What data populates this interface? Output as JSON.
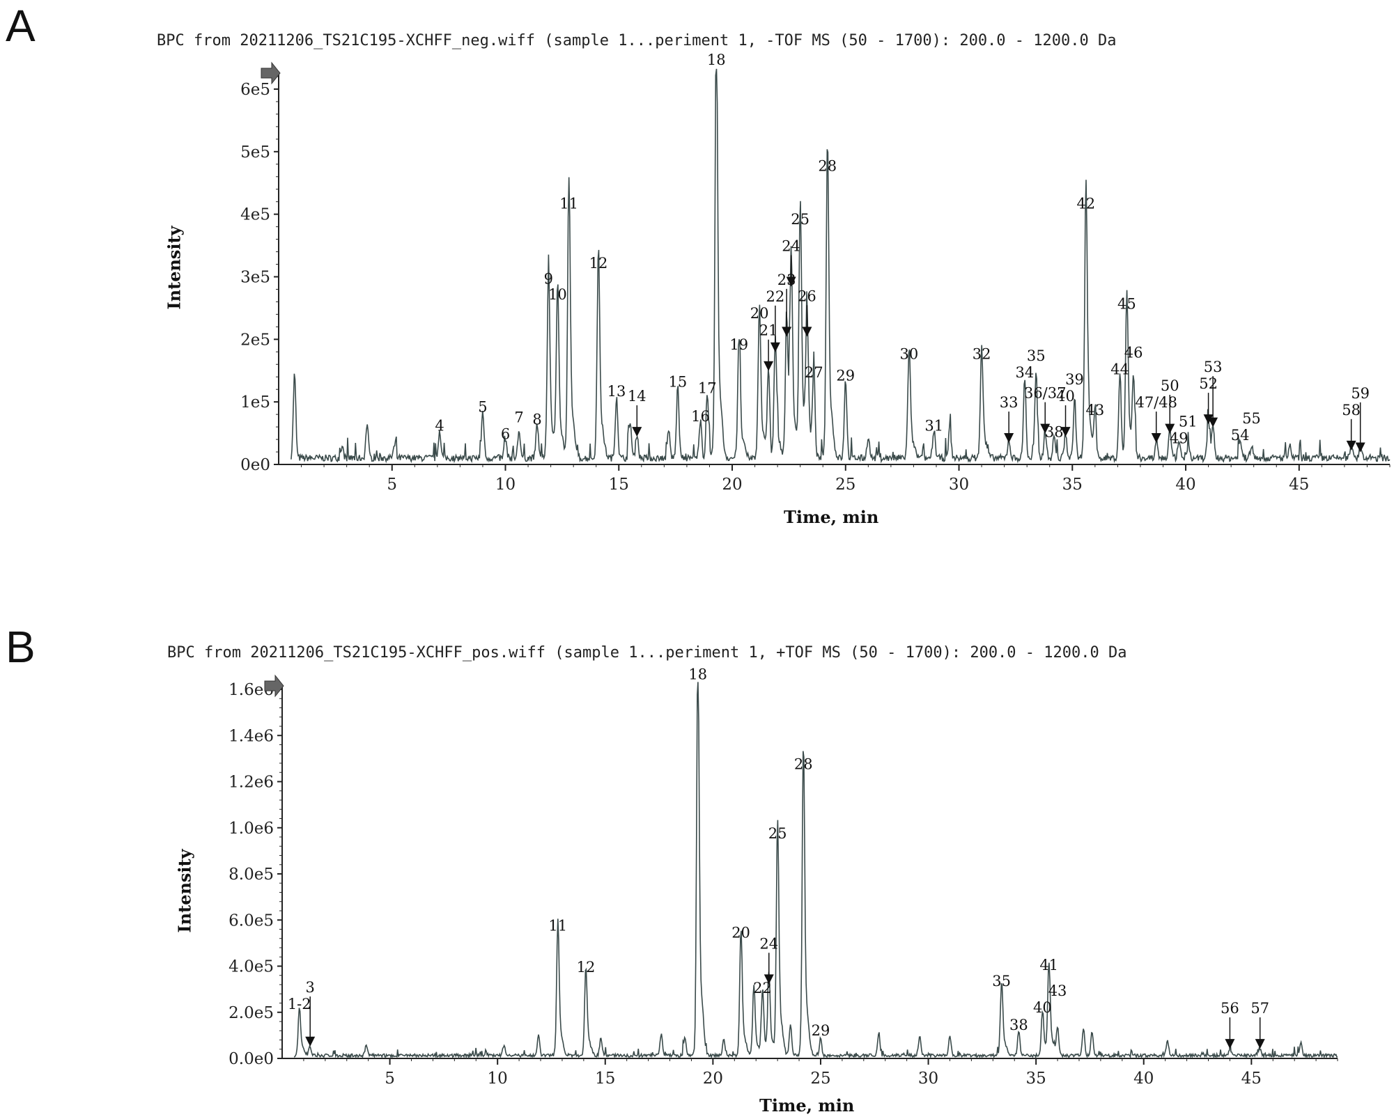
{
  "panels": [
    {
      "letter": "A",
      "title": "BPC from 20211206_TS21C195-XCHFF_neg.wiff (sample 1...periment 1, -TOF MS (50 - 1700): 200.0 - 1200.0 Da",
      "xlabel": "Time, min",
      "ylabel": "Intensity"
    },
    {
      "letter": "B",
      "title": "BPC from 20211206_TS21C195-XCHFF_pos.wiff (sample 1...periment 1, +TOF MS (50 - 1700): 200.0 - 1200.0 Da",
      "xlabel": "Time, min",
      "ylabel": "Intensity"
    }
  ],
  "chart_data": [
    {
      "type": "line",
      "title": "BPC from 20211206_TS21C195-XCHFF_neg.wiff (sample 1...periment 1, -TOF MS (50 - 1700): 200.0 - 1200.0 Da",
      "xlabel": "Time, min",
      "ylabel": "Intensity",
      "xlim": [
        0,
        49
      ],
      "ylim": [
        0,
        620000
      ],
      "xticks": [
        5,
        10,
        15,
        20,
        25,
        30,
        35,
        40,
        45
      ],
      "yticks": [
        {
          "value": 0,
          "label": "0e0"
        },
        {
          "value": 100000,
          "label": "1e5"
        },
        {
          "value": 200000,
          "label": "2e5"
        },
        {
          "value": 300000,
          "label": "3e5"
        },
        {
          "value": 400000,
          "label": "4e5"
        },
        {
          "value": 500000,
          "label": "5e5"
        },
        {
          "value": 600000,
          "label": "6e5"
        }
      ],
      "color": "#3a4a4a",
      "baseline": 12000,
      "peaks": [
        {
          "x": 0.7,
          "y": 135000
        },
        {
          "x": 2.8,
          "y": 18000
        },
        {
          "x": 3.9,
          "y": 55000
        },
        {
          "x": 5.1,
          "y": 18000
        },
        {
          "x": 7.1,
          "y": 45000,
          "label": "4"
        },
        {
          "x": 9.0,
          "y": 75000,
          "label": "5"
        },
        {
          "x": 10.0,
          "y": 32000,
          "label": "6"
        },
        {
          "x": 10.6,
          "y": 45000,
          "label": "7"
        },
        {
          "x": 11.4,
          "y": 55000,
          "label": "8"
        },
        {
          "x": 11.9,
          "y": 280000,
          "label": "9"
        },
        {
          "x": 12.3,
          "y": 255000,
          "label": "10"
        },
        {
          "x": 12.8,
          "y": 400000,
          "label": "11"
        },
        {
          "x": 14.1,
          "y": 305000,
          "label": "12"
        },
        {
          "x": 14.9,
          "y": 100000,
          "label": "13"
        },
        {
          "x": 15.5,
          "y": 60000
        },
        {
          "x": 15.8,
          "y": 40000,
          "label": "14",
          "arrow": true
        },
        {
          "x": 17.2,
          "y": 45000
        },
        {
          "x": 17.6,
          "y": 115000,
          "label": "15"
        },
        {
          "x": 18.6,
          "y": 60000,
          "label": "16"
        },
        {
          "x": 18.9,
          "y": 105000,
          "label": "17"
        },
        {
          "x": 19.3,
          "y": 630000,
          "label": "18"
        },
        {
          "x": 20.3,
          "y": 175000,
          "label": "19"
        },
        {
          "x": 21.2,
          "y": 225000,
          "label": "20"
        },
        {
          "x": 21.6,
          "y": 145000,
          "label": "21",
          "arrow": true
        },
        {
          "x": 21.9,
          "y": 175000,
          "label": "22",
          "arrow": true
        },
        {
          "x": 22.4,
          "y": 200000,
          "label": "23",
          "arrow": true
        },
        {
          "x": 22.6,
          "y": 280000,
          "label": "24",
          "arrow": true
        },
        {
          "x": 23.0,
          "y": 375000,
          "label": "25"
        },
        {
          "x": 23.3,
          "y": 200000,
          "label": "26",
          "arrow": true
        },
        {
          "x": 23.6,
          "y": 130000,
          "label": "27"
        },
        {
          "x": 24.2,
          "y": 460000,
          "label": "28"
        },
        {
          "x": 25.0,
          "y": 125000,
          "label": "29"
        },
        {
          "x": 26.0,
          "y": 35000
        },
        {
          "x": 27.8,
          "y": 160000,
          "label": "30"
        },
        {
          "x": 28.9,
          "y": 45000,
          "label": "31"
        },
        {
          "x": 29.6,
          "y": 50000
        },
        {
          "x": 31.0,
          "y": 160000,
          "label": "32"
        },
        {
          "x": 32.2,
          "y": 30000,
          "label": "33",
          "arrow": true
        },
        {
          "x": 32.9,
          "y": 130000,
          "label": "34"
        },
        {
          "x": 33.4,
          "y": 140000,
          "label": "35"
        },
        {
          "x": 33.8,
          "y": 45000,
          "label": "36/37",
          "arrow": true
        },
        {
          "x": 34.2,
          "y": 35000,
          "label": "38"
        },
        {
          "x": 34.7,
          "y": 40000,
          "label": "40",
          "arrow": true
        },
        {
          "x": 35.1,
          "y": 95000,
          "label": "39"
        },
        {
          "x": 35.6,
          "y": 400000,
          "label": "42"
        },
        {
          "x": 36.0,
          "y": 70000,
          "label": "43"
        },
        {
          "x": 37.1,
          "y": 135000,
          "label": "44"
        },
        {
          "x": 37.4,
          "y": 240000,
          "label": "45"
        },
        {
          "x": 37.7,
          "y": 120000,
          "label": "46"
        },
        {
          "x": 38.7,
          "y": 30000,
          "label": "47/48",
          "arrow": true
        },
        {
          "x": 39.3,
          "y": 45000,
          "label": "50",
          "arrow": true
        },
        {
          "x": 39.7,
          "y": 25000,
          "label": "49"
        },
        {
          "x": 40.1,
          "y": 20000,
          "label": "51"
        },
        {
          "x": 41.0,
          "y": 60000,
          "label": "52",
          "arrow": true
        },
        {
          "x": 41.2,
          "y": 55000,
          "label": "53",
          "arrow": true
        },
        {
          "x": 42.4,
          "y": 30000,
          "label": "54"
        },
        {
          "x": 42.9,
          "y": 20000,
          "label": "55"
        },
        {
          "x": 44.6,
          "y": 18000
        },
        {
          "x": 47.3,
          "y": 18000,
          "label": "58",
          "arrow": true
        },
        {
          "x": 47.7,
          "y": 15000,
          "label": "59",
          "arrow": true
        }
      ]
    },
    {
      "type": "line",
      "title": "BPC from 20211206_TS21C195-XCHFF_pos.wiff (sample 1...periment 1, +TOF MS (50 - 1700): 200.0 - 1200.0 Da",
      "xlabel": "Time, min",
      "ylabel": "Intensity",
      "xlim": [
        0,
        49
      ],
      "ylim": [
        0,
        1600000
      ],
      "xticks": [
        5,
        10,
        15,
        20,
        25,
        30,
        35,
        40,
        45
      ],
      "yticks": [
        {
          "value": 0,
          "label": "0.0e0"
        },
        {
          "value": 200000,
          "label": "2.0e5"
        },
        {
          "value": 400000,
          "label": "4.0e5"
        },
        {
          "value": 600000,
          "label": "6.0e5"
        },
        {
          "value": 800000,
          "label": "8.0e5"
        },
        {
          "value": 1000000,
          "label": "1.0e6"
        },
        {
          "value": 1200000,
          "label": "1.2e6"
        },
        {
          "value": 1400000,
          "label": "1.4e6"
        },
        {
          "value": 1600000,
          "label": "1.6e6"
        }
      ],
      "color": "#3a4a4a",
      "baseline": 15000,
      "peaks": [
        {
          "x": 0.8,
          "y": 190000,
          "label": "1-2"
        },
        {
          "x": 1.3,
          "y": 40000,
          "label": "3",
          "arrow": true
        },
        {
          "x": 3.9,
          "y": 45000
        },
        {
          "x": 10.3,
          "y": 45000
        },
        {
          "x": 11.9,
          "y": 90000
        },
        {
          "x": 12.8,
          "y": 530000,
          "label": "11"
        },
        {
          "x": 14.1,
          "y": 350000,
          "label": "12"
        },
        {
          "x": 14.8,
          "y": 80000
        },
        {
          "x": 17.6,
          "y": 90000
        },
        {
          "x": 18.7,
          "y": 80000
        },
        {
          "x": 19.3,
          "y": 1620000,
          "label": "18"
        },
        {
          "x": 20.5,
          "y": 70000
        },
        {
          "x": 21.3,
          "y": 500000,
          "label": "20"
        },
        {
          "x": 21.9,
          "y": 280000
        },
        {
          "x": 22.3,
          "y": 260000,
          "label": "22"
        },
        {
          "x": 22.6,
          "y": 310000,
          "label": "24",
          "arrow": true
        },
        {
          "x": 23.0,
          "y": 930000,
          "label": "25"
        },
        {
          "x": 23.6,
          "y": 130000
        },
        {
          "x": 24.2,
          "y": 1230000,
          "label": "28"
        },
        {
          "x": 25.0,
          "y": 75000,
          "label": "29"
        },
        {
          "x": 27.7,
          "y": 100000
        },
        {
          "x": 29.6,
          "y": 85000
        },
        {
          "x": 31.0,
          "y": 90000
        },
        {
          "x": 33.4,
          "y": 290000,
          "label": "35"
        },
        {
          "x": 34.2,
          "y": 100000,
          "label": "38"
        },
        {
          "x": 35.3,
          "y": 175000,
          "label": "40"
        },
        {
          "x": 35.6,
          "y": 360000,
          "label": "41"
        },
        {
          "x": 36.0,
          "y": 120000,
          "label": "43"
        },
        {
          "x": 37.2,
          "y": 120000
        },
        {
          "x": 37.6,
          "y": 100000
        },
        {
          "x": 41.1,
          "y": 70000
        },
        {
          "x": 44.0,
          "y": 30000,
          "label": "56",
          "arrow": true
        },
        {
          "x": 45.4,
          "y": 30000,
          "label": "57",
          "arrow": true
        },
        {
          "x": 47.3,
          "y": 60000
        }
      ]
    }
  ]
}
